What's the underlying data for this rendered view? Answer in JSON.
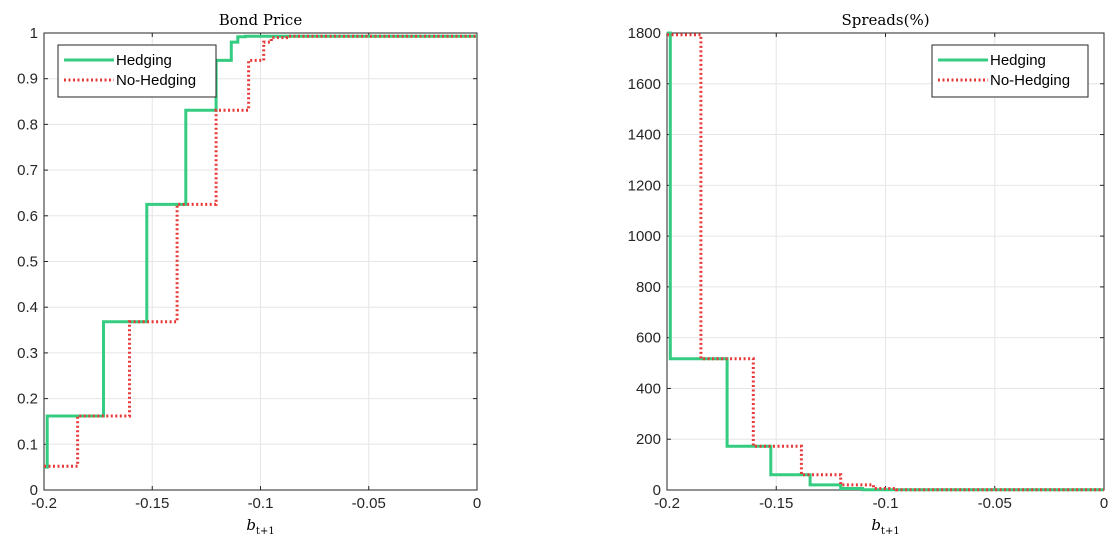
{
  "chart_data": [
    {
      "type": "line",
      "title": "Bond Price",
      "xlabel_main": "b",
      "xlabel_sub": "t+1",
      "ylabel": "",
      "xlim": [
        -0.2,
        0
      ],
      "ylim": [
        0,
        1
      ],
      "xticks": [
        -0.2,
        -0.15,
        -0.1,
        -0.05,
        0
      ],
      "xtick_labels": [
        "-0.2",
        "-0.15",
        "-0.1",
        "-0.05",
        "0"
      ],
      "yticks": [
        0,
        0.1,
        0.2,
        0.3,
        0.4,
        0.5,
        0.6,
        0.7,
        0.8,
        0.9,
        1
      ],
      "ytick_labels": [
        "0",
        "0.1",
        "0.2",
        "0.3",
        "0.4",
        "0.5",
        "0.6",
        "0.7",
        "0.8",
        "0.9",
        "1"
      ],
      "grid": true,
      "legend_position": "top-left",
      "series": [
        {
          "name": "Hedging",
          "color": "#33cc80",
          "style": "solid",
          "x": [
            -0.2,
            -0.1985,
            -0.1985,
            -0.1725,
            -0.1725,
            -0.1525,
            -0.1525,
            -0.1345,
            -0.1345,
            -0.1205,
            -0.1205,
            -0.1135,
            -0.1135,
            -0.1105,
            -0.1105,
            -0.107,
            -0.107,
            0
          ],
          "y": [
            0.05,
            0.05,
            0.162,
            0.162,
            0.368,
            0.368,
            0.625,
            0.625,
            0.831,
            0.831,
            0.94,
            0.94,
            0.98,
            0.98,
            0.992,
            0.992,
            0.993,
            0.993
          ]
        },
        {
          "name": "No-Hedging",
          "color": "#e83838",
          "style": "dotted",
          "x": [
            -0.2,
            -0.1845,
            -0.1845,
            -0.1605,
            -0.1605,
            -0.1385,
            -0.1385,
            -0.1205,
            -0.1205,
            -0.1055,
            -0.1055,
            -0.0985,
            -0.0985,
            -0.095,
            -0.095,
            -0.088,
            -0.088,
            0
          ],
          "y": [
            0.052,
            0.052,
            0.162,
            0.162,
            0.368,
            0.368,
            0.625,
            0.625,
            0.831,
            0.831,
            0.94,
            0.94,
            0.98,
            0.98,
            0.99,
            0.99,
            0.993,
            0.993
          ]
        }
      ]
    },
    {
      "type": "line",
      "title": "Spreads(%)",
      "xlabel_main": "b",
      "xlabel_sub": "t+1",
      "ylabel": "",
      "xlim": [
        -0.2,
        0
      ],
      "ylim": [
        0,
        1800
      ],
      "xticks": [
        -0.2,
        -0.15,
        -0.1,
        -0.05,
        0
      ],
      "xtick_labels": [
        "-0.2",
        "-0.15",
        "-0.1",
        "-0.05",
        "0"
      ],
      "yticks": [
        0,
        200,
        400,
        600,
        800,
        1000,
        1200,
        1400,
        1600,
        1800
      ],
      "ytick_labels": [
        "0",
        "200",
        "400",
        "600",
        "800",
        "1000",
        "1200",
        "1400",
        "1600",
        "1800"
      ],
      "grid": true,
      "legend_position": "top-right",
      "series": [
        {
          "name": "Hedging",
          "color": "#33cc80",
          "style": "solid",
          "x": [
            -0.2,
            -0.1985,
            -0.1985,
            -0.1725,
            -0.1725,
            -0.1525,
            -0.1525,
            -0.1345,
            -0.1345,
            -0.1205,
            -0.1205,
            -0.1105,
            -0.1105,
            0
          ],
          "y": [
            1800,
            1800,
            517,
            517,
            172,
            172,
            60,
            60,
            20,
            20,
            6,
            6,
            1,
            1
          ]
        },
        {
          "name": "No-Hedging",
          "color": "#e83838",
          "style": "dotted",
          "x": [
            -0.2,
            -0.1845,
            -0.1845,
            -0.1605,
            -0.1605,
            -0.1385,
            -0.1385,
            -0.1205,
            -0.1205,
            -0.1055,
            -0.1055,
            -0.095,
            -0.095,
            0
          ],
          "y": [
            1793,
            1793,
            517,
            517,
            172,
            172,
            60,
            60,
            20,
            20,
            6,
            6,
            1,
            1
          ]
        }
      ]
    }
  ]
}
